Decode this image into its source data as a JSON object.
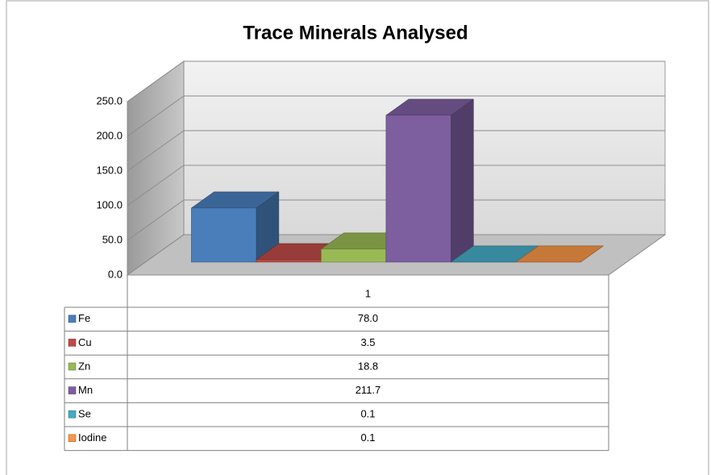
{
  "chart_data": {
    "type": "bar3d",
    "title": "Trace Minerals Analysed",
    "categories": [
      "1"
    ],
    "series": [
      {
        "name": "Fe",
        "color": "#4a7ebb",
        "values": [
          78.0
        ],
        "value_labels": [
          "78.0"
        ]
      },
      {
        "name": "Cu",
        "color": "#be4b48",
        "values": [
          3.5
        ],
        "value_labels": [
          "3.5"
        ]
      },
      {
        "name": "Zn",
        "color": "#98b954",
        "values": [
          18.8
        ],
        "value_labels": [
          "18.8"
        ]
      },
      {
        "name": "Mn",
        "color": "#7d5fa0",
        "values": [
          211.7
        ],
        "value_labels": [
          "211.7"
        ]
      },
      {
        "name": "Se",
        "color": "#46aac5",
        "values": [
          0.1
        ],
        "value_labels": [
          "0.1"
        ]
      },
      {
        "name": "Iodine",
        "color": "#f79646",
        "values": [
          0.1
        ],
        "value_labels": [
          "0.1"
        ]
      }
    ],
    "ylim": [
      0,
      250
    ],
    "yticks": [
      {
        "value": 0,
        "label": "0.0"
      },
      {
        "value": 50,
        "label": "50.0"
      },
      {
        "value": 100,
        "label": "100.0"
      },
      {
        "value": 150,
        "label": "150.0"
      },
      {
        "value": 200,
        "label": "200.0"
      },
      {
        "value": 250,
        "label": "250.0"
      }
    ],
    "grid": true,
    "data_table": true
  }
}
